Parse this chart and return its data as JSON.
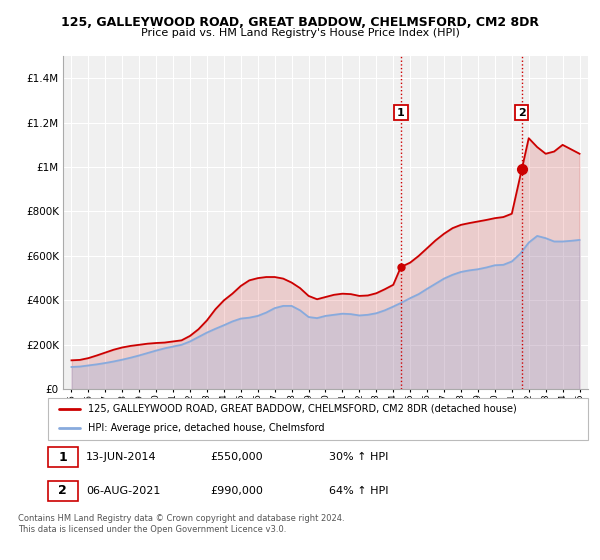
{
  "title": "125, GALLEYWOOD ROAD, GREAT BADDOW, CHELMSFORD, CM2 8DR",
  "subtitle": "Price paid vs. HM Land Registry's House Price Index (HPI)",
  "legend_line1": "125, GALLEYWOOD ROAD, GREAT BADDOW, CHELMSFORD, CM2 8DR (detached house)",
  "legend_line2": "HPI: Average price, detached house, Chelmsford",
  "transaction1_date": "13-JUN-2014",
  "transaction1_price": "£550,000",
  "transaction1_hpi": "30% ↑ HPI",
  "transaction2_date": "06-AUG-2021",
  "transaction2_price": "£990,000",
  "transaction2_hpi": "64% ↑ HPI",
  "footnote1": "Contains HM Land Registry data © Crown copyright and database right 2024.",
  "footnote2": "This data is licensed under the Open Government Licence v3.0.",
  "ylim": [
    0,
    1500000
  ],
  "yticks": [
    0,
    200000,
    400000,
    600000,
    800000,
    1000000,
    1200000,
    1400000
  ],
  "ytick_labels": [
    "£0",
    "£200K",
    "£400K",
    "£600K",
    "£800K",
    "£1M",
    "£1.2M",
    "£1.4M"
  ],
  "red_color": "#cc0000",
  "blue_color": "#88aadd",
  "bg_color": "#f0f0f0",
  "transaction1_x": 2014.45,
  "transaction2_x": 2021.59,
  "hpi_years": [
    1995.0,
    1995.5,
    1996.0,
    1996.5,
    1997.0,
    1997.5,
    1998.0,
    1998.5,
    1999.0,
    1999.5,
    2000.0,
    2000.5,
    2001.0,
    2001.5,
    2002.0,
    2002.5,
    2003.0,
    2003.5,
    2004.0,
    2004.5,
    2005.0,
    2005.5,
    2006.0,
    2006.5,
    2007.0,
    2007.5,
    2008.0,
    2008.5,
    2009.0,
    2009.5,
    2010.0,
    2010.5,
    2011.0,
    2011.5,
    2012.0,
    2012.5,
    2013.0,
    2013.5,
    2014.0,
    2014.5,
    2015.0,
    2015.5,
    2016.0,
    2016.5,
    2017.0,
    2017.5,
    2018.0,
    2018.5,
    2019.0,
    2019.5,
    2020.0,
    2020.5,
    2021.0,
    2021.5,
    2022.0,
    2022.5,
    2023.0,
    2023.5,
    2024.0,
    2024.5,
    2025.0
  ],
  "hpi_values": [
    100000,
    102000,
    107000,
    112000,
    118000,
    125000,
    133000,
    142000,
    152000,
    163000,
    174000,
    184000,
    192000,
    200000,
    215000,
    235000,
    255000,
    272000,
    288000,
    305000,
    318000,
    322000,
    330000,
    345000,
    365000,
    375000,
    375000,
    355000,
    325000,
    320000,
    330000,
    335000,
    340000,
    338000,
    332000,
    335000,
    342000,
    355000,
    372000,
    390000,
    410000,
    428000,
    452000,
    475000,
    498000,
    515000,
    528000,
    535000,
    540000,
    548000,
    558000,
    560000,
    575000,
    610000,
    660000,
    690000,
    680000,
    665000,
    665000,
    668000,
    672000
  ],
  "red_years": [
    1995.0,
    1995.5,
    1996.0,
    1996.5,
    1997.0,
    1997.5,
    1998.0,
    1998.5,
    1999.0,
    1999.5,
    2000.0,
    2000.5,
    2001.0,
    2001.5,
    2002.0,
    2002.5,
    2003.0,
    2003.5,
    2004.0,
    2004.5,
    2005.0,
    2005.5,
    2006.0,
    2006.5,
    2007.0,
    2007.5,
    2008.0,
    2008.5,
    2009.0,
    2009.5,
    2010.0,
    2010.5,
    2011.0,
    2011.5,
    2012.0,
    2012.5,
    2013.0,
    2013.5,
    2014.0,
    2014.45,
    2015.0,
    2015.5,
    2016.0,
    2016.5,
    2017.0,
    2017.5,
    2018.0,
    2018.5,
    2019.0,
    2019.5,
    2020.0,
    2020.5,
    2021.0,
    2021.59,
    2022.0,
    2022.5,
    2023.0,
    2023.5,
    2024.0,
    2024.5,
    2025.0
  ],
  "red_values": [
    130000,
    132000,
    140000,
    152000,
    165000,
    178000,
    188000,
    195000,
    200000,
    205000,
    208000,
    210000,
    215000,
    220000,
    240000,
    270000,
    310000,
    360000,
    400000,
    430000,
    465000,
    490000,
    500000,
    505000,
    505000,
    498000,
    480000,
    455000,
    420000,
    405000,
    415000,
    425000,
    430000,
    428000,
    420000,
    422000,
    432000,
    450000,
    470000,
    550000,
    570000,
    600000,
    635000,
    670000,
    700000,
    725000,
    740000,
    748000,
    755000,
    762000,
    770000,
    775000,
    790000,
    990000,
    1130000,
    1090000,
    1060000,
    1070000,
    1100000,
    1080000,
    1060000
  ]
}
